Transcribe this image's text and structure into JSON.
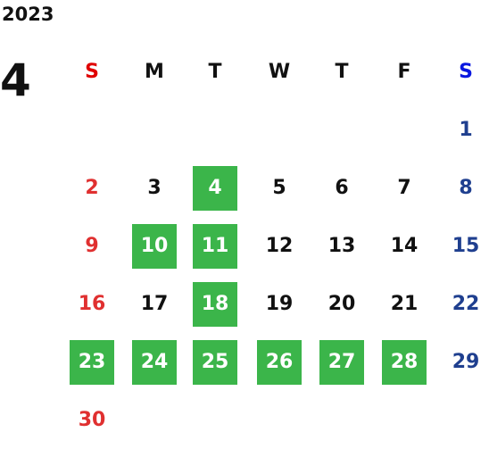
{
  "calendar": {
    "year": "2023",
    "month": "4",
    "weekdays": [
      "S",
      "M",
      "T",
      "W",
      "T",
      "F",
      "S"
    ],
    "weeks": [
      [
        null,
        null,
        null,
        null,
        null,
        null,
        {
          "text": "1",
          "marked": false
        }
      ],
      [
        {
          "text": "2",
          "marked": false
        },
        {
          "text": "3",
          "marked": false
        },
        {
          "text": "4",
          "marked": true
        },
        {
          "text": "5",
          "marked": false
        },
        {
          "text": "6",
          "marked": false
        },
        {
          "text": "7",
          "marked": false
        },
        {
          "text": "8",
          "marked": false
        }
      ],
      [
        {
          "text": "9",
          "marked": false
        },
        {
          "text": "10",
          "marked": true
        },
        {
          "text": "11",
          "marked": true
        },
        {
          "text": "12",
          "marked": false
        },
        {
          "text": "13",
          "marked": false
        },
        {
          "text": "14",
          "marked": false
        },
        {
          "text": "15",
          "marked": false
        }
      ],
      [
        {
          "text": "16",
          "marked": false
        },
        {
          "text": "17",
          "marked": false
        },
        {
          "text": "18",
          "marked": true
        },
        {
          "text": "19",
          "marked": false
        },
        {
          "text": "20",
          "marked": false
        },
        {
          "text": "21",
          "marked": false
        },
        {
          "text": "22",
          "marked": false
        }
      ],
      [
        {
          "text": "23",
          "marked": true
        },
        {
          "text": "24",
          "marked": true
        },
        {
          "text": "25",
          "marked": true
        },
        {
          "text": "26",
          "marked": true
        },
        {
          "text": "27",
          "marked": true
        },
        {
          "text": "28",
          "marked": true
        },
        {
          "text": "29",
          "marked": false
        }
      ],
      [
        {
          "text": "30",
          "marked": false
        },
        null,
        null,
        null,
        null,
        null,
        null
      ]
    ],
    "marked_color": "#3bb54a"
  }
}
